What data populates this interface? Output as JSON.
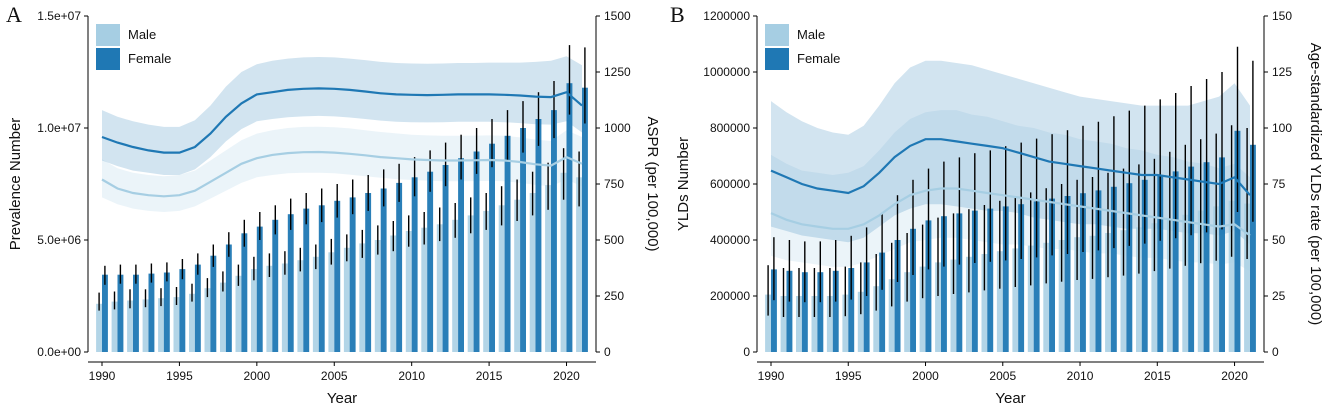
{
  "colors": {
    "male": "#a6cee3",
    "female": "#1f78b4",
    "errorbar": "#000000"
  },
  "chart_data": [
    {
      "type": "bar",
      "panel": "A",
      "xlabel": "Year",
      "ylabel": "Prevalence Number",
      "ylabel_right": "ASPR (per 100,000)",
      "years": [
        1990,
        1991,
        1992,
        1993,
        1994,
        1995,
        1996,
        1997,
        1998,
        1999,
        2000,
        2001,
        2002,
        2003,
        2004,
        2005,
        2006,
        2007,
        2008,
        2009,
        2010,
        2011,
        2012,
        2013,
        2014,
        2015,
        2016,
        2017,
        2018,
        2019,
        2020,
        2021
      ],
      "ylim_left": [
        0,
        15000000
      ],
      "yticks_left": [
        0,
        5000000,
        10000000,
        15000000
      ],
      "ytick_labels_left": [
        "0.0e+00",
        "5.0e+06",
        "1.0e+07",
        "1.5e+07"
      ],
      "ylim_right": [
        0,
        1500
      ],
      "yticks_right": [
        0,
        250,
        500,
        750,
        1000,
        1250,
        1500
      ],
      "ytick_labels_right": [
        "0",
        "250",
        "500",
        "750",
        "1000",
        "1250",
        "1500"
      ],
      "xticks": [
        1990,
        1995,
        2000,
        2005,
        2010,
        2015,
        2020
      ],
      "legend": [
        "Male",
        "Female"
      ],
      "series": [
        {
          "name": "Male",
          "values": [
            2150000,
            2250000,
            2300000,
            2350000,
            2400000,
            2450000,
            2600000,
            2850000,
            3100000,
            3400000,
            3700000,
            3850000,
            3950000,
            4100000,
            4250000,
            4450000,
            4650000,
            4850000,
            5000000,
            5200000,
            5400000,
            5550000,
            5700000,
            5900000,
            6100000,
            6300000,
            6550000,
            6800000,
            7100000,
            7450000,
            8000000,
            7800000
          ],
          "lower": [
            1850000,
            1900000,
            1950000,
            2000000,
            2050000,
            2100000,
            2250000,
            2450000,
            2700000,
            2950000,
            3200000,
            3350000,
            3450000,
            3600000,
            3700000,
            3900000,
            4050000,
            4200000,
            4350000,
            4500000,
            4700000,
            4800000,
            4950000,
            5100000,
            5300000,
            5450000,
            5650000,
            5850000,
            6100000,
            6350000,
            6800000,
            6500000
          ],
          "upper": [
            2650000,
            2700000,
            2800000,
            2800000,
            2850000,
            2900000,
            3050000,
            3300000,
            3600000,
            3900000,
            4250000,
            4400000,
            4500000,
            4650000,
            4800000,
            5050000,
            5250000,
            5450000,
            5650000,
            5850000,
            6100000,
            6250000,
            6450000,
            6650000,
            6900000,
            7100000,
            7400000,
            7700000,
            8050000,
            8450000,
            9100000,
            8950000
          ]
        },
        {
          "name": "Female",
          "values": [
            3450000,
            3450000,
            3450000,
            3500000,
            3550000,
            3700000,
            3900000,
            4300000,
            4800000,
            5300000,
            5600000,
            5900000,
            6150000,
            6400000,
            6550000,
            6750000,
            6900000,
            7100000,
            7300000,
            7550000,
            7800000,
            8050000,
            8350000,
            8650000,
            8950000,
            9300000,
            9650000,
            10000000,
            10400000,
            10800000,
            12000000,
            11800000
          ],
          "lower": [
            3000000,
            3050000,
            3050000,
            3100000,
            3150000,
            3250000,
            3450000,
            3800000,
            4250000,
            4700000,
            5000000,
            5250000,
            5450000,
            5700000,
            5800000,
            6000000,
            6150000,
            6300000,
            6500000,
            6700000,
            6950000,
            7150000,
            7400000,
            7700000,
            7950000,
            8250000,
            8550000,
            8900000,
            9200000,
            9550000,
            10600000,
            10200000
          ],
          "upper": [
            3850000,
            3900000,
            3900000,
            3950000,
            4000000,
            4150000,
            4400000,
            4800000,
            5350000,
            5900000,
            6250000,
            6550000,
            6850000,
            7100000,
            7300000,
            7500000,
            7700000,
            7900000,
            8150000,
            8400000,
            8700000,
            9000000,
            9350000,
            9700000,
            10000000,
            10400000,
            10800000,
            11200000,
            11600000,
            12100000,
            13700000,
            13600000
          ]
        }
      ],
      "rate_series": [
        {
          "name": "Male",
          "values": [
            770,
            730,
            710,
            700,
            695,
            700,
            720,
            760,
            800,
            840,
            865,
            880,
            888,
            892,
            893,
            890,
            885,
            878,
            870,
            865,
            860,
            857,
            855,
            855,
            856,
            857,
            855,
            848,
            838,
            832,
            870,
            840
          ],
          "lower": [
            690,
            660,
            640,
            630,
            625,
            630,
            650,
            685,
            720,
            755,
            780,
            790,
            798,
            800,
            800,
            798,
            792,
            785,
            778,
            772,
            768,
            765,
            762,
            762,
            763,
            764,
            762,
            756,
            746,
            740,
            770,
            740
          ],
          "upper": [
            860,
            820,
            800,
            790,
            785,
            790,
            810,
            855,
            900,
            945,
            975,
            990,
            1000,
            1005,
            1006,
            1003,
            998,
            990,
            982,
            976,
            970,
            967,
            965,
            965,
            966,
            967,
            965,
            958,
            948,
            942,
            990,
            960
          ]
        },
        {
          "name": "Female",
          "values": [
            960,
            935,
            915,
            900,
            890,
            890,
            915,
            975,
            1050,
            1110,
            1150,
            1160,
            1170,
            1175,
            1177,
            1175,
            1170,
            1163,
            1155,
            1150,
            1148,
            1147,
            1148,
            1150,
            1150,
            1150,
            1148,
            1145,
            1140,
            1138,
            1160,
            1100
          ],
          "lower": [
            855,
            830,
            810,
            800,
            790,
            790,
            815,
            870,
            940,
            995,
            1030,
            1040,
            1048,
            1052,
            1054,
            1052,
            1047,
            1040,
            1033,
            1028,
            1026,
            1025,
            1026,
            1028,
            1028,
            1028,
            1026,
            1022,
            1017,
            1015,
            1030,
            980
          ],
          "upper": [
            1080,
            1050,
            1030,
            1015,
            1005,
            1005,
            1035,
            1100,
            1185,
            1250,
            1285,
            1300,
            1310,
            1315,
            1317,
            1315,
            1310,
            1303,
            1295,
            1290,
            1288,
            1287,
            1288,
            1290,
            1290,
            1292,
            1292,
            1292,
            1295,
            1300,
            1320,
            1280
          ]
        }
      ]
    },
    {
      "type": "bar",
      "panel": "B",
      "xlabel": "Year",
      "ylabel": "YLDs Number",
      "ylabel_right": "Age-standardized YLDs rate (per 100,000)",
      "years": [
        1990,
        1991,
        1992,
        1993,
        1994,
        1995,
        1996,
        1997,
        1998,
        1999,
        2000,
        2001,
        2002,
        2003,
        2004,
        2005,
        2006,
        2007,
        2008,
        2009,
        2010,
        2011,
        2012,
        2013,
        2014,
        2015,
        2016,
        2017,
        2018,
        2019,
        2020,
        2021
      ],
      "ylim_left": [
        0,
        1200000
      ],
      "yticks_left": [
        0,
        200000,
        400000,
        600000,
        800000,
        1000000,
        1200000
      ],
      "ytick_labels_left": [
        "0",
        "200000",
        "400000",
        "600000",
        "800000",
        "1000000",
        "1200000"
      ],
      "ylim_right": [
        0,
        150
      ],
      "yticks_right": [
        0,
        25,
        50,
        75,
        100,
        125,
        150
      ],
      "ytick_labels_right": [
        "0",
        "25",
        "50",
        "75",
        "100",
        "125",
        "150"
      ],
      "xticks": [
        1990,
        1995,
        2000,
        2005,
        2010,
        2015,
        2020
      ],
      "legend": [
        "Male",
        "Female"
      ],
      "series": [
        {
          "name": "Male",
          "values": [
            205000,
            200000,
            200000,
            200000,
            200000,
            205000,
            215000,
            235000,
            260000,
            285000,
            305000,
            320000,
            330000,
            340000,
            350000,
            360000,
            370000,
            380000,
            390000,
            400000,
            410000,
            415000,
            425000,
            435000,
            445000,
            460000,
            475000,
            490000,
            505000,
            520000,
            540000,
            530000
          ],
          "lower": [
            130000,
            125000,
            125000,
            125000,
            125000,
            128000,
            135000,
            148000,
            163000,
            180000,
            192000,
            200000,
            207000,
            213000,
            220000,
            226000,
            232000,
            238000,
            245000,
            251000,
            257000,
            261000,
            267000,
            273000,
            280000,
            289000,
            298000,
            308000,
            317000,
            326000,
            340000,
            332000
          ],
          "upper": [
            310000,
            300000,
            300000,
            300000,
            300000,
            305000,
            320000,
            350000,
            390000,
            425000,
            455000,
            480000,
            495000,
            510000,
            525000,
            540000,
            555000,
            570000,
            585000,
            600000,
            615000,
            625000,
            640000,
            655000,
            670000,
            690000,
            715000,
            740000,
            760000,
            780000,
            810000,
            800000
          ]
        },
        {
          "name": "Female",
          "values": [
            295000,
            290000,
            285000,
            285000,
            290000,
            300000,
            320000,
            355000,
            400000,
            440000,
            470000,
            485000,
            495000,
            505000,
            512000,
            520000,
            528000,
            538000,
            548000,
            557000,
            567000,
            577000,
            590000,
            603000,
            615000,
            630000,
            645000,
            662000,
            678000,
            695000,
            790000,
            740000
          ],
          "lower": [
            185000,
            180000,
            178000,
            178000,
            180000,
            187000,
            200000,
            222000,
            250000,
            275000,
            295000,
            305000,
            312000,
            318000,
            322000,
            327000,
            332000,
            338000,
            345000,
            350000,
            357000,
            363000,
            371000,
            379000,
            387000,
            397000,
            406000,
            417000,
            427000,
            438000,
            500000,
            465000
          ],
          "upper": [
            410000,
            400000,
            395000,
            395000,
            400000,
            415000,
            445000,
            495000,
            560000,
            615000,
            655000,
            680000,
            695000,
            710000,
            720000,
            735000,
            748000,
            762000,
            778000,
            792000,
            808000,
            822000,
            842000,
            862000,
            880000,
            902000,
            925000,
            950000,
            975000,
            1000000,
            1090000,
            1040000
          ]
        }
      ],
      "rate_series": [
        {
          "name": "Male",
          "values": [
            62,
            59,
            57,
            56,
            55,
            55,
            57,
            61,
            66,
            70,
            72,
            73,
            73,
            72,
            71,
            70,
            69,
            68,
            67,
            66,
            65,
            64,
            63,
            62,
            61,
            60,
            59,
            58,
            57,
            56,
            57,
            52
          ],
          "lower": [
            43,
            41,
            40,
            39,
            38,
            38,
            40,
            43,
            46,
            49,
            50,
            51,
            51,
            50,
            49,
            48,
            48,
            47,
            46,
            46,
            45,
            44,
            44,
            43,
            42,
            42,
            41,
            40,
            40,
            39,
            40,
            36
          ],
          "upper": [
            88,
            84,
            81,
            80,
            79,
            80,
            83,
            90,
            98,
            104,
            107,
            108,
            108,
            106,
            105,
            103,
            101,
            100,
            98,
            97,
            95,
            94,
            93,
            91,
            90,
            88,
            87,
            85,
            84,
            82,
            84,
            78
          ]
        },
        {
          "name": "Female",
          "values": [
            81,
            78,
            75,
            73,
            72,
            71,
            74,
            80,
            87,
            92,
            95,
            95,
            94,
            93,
            92,
            91,
            89,
            87,
            85,
            84,
            83,
            82,
            81,
            80,
            79,
            79,
            78,
            77,
            76,
            75,
            78,
            70
          ],
          "lower": [
            56,
            54,
            52,
            51,
            50,
            49,
            51,
            56,
            61,
            64,
            66,
            66,
            65,
            64,
            63,
            63,
            62,
            60,
            59,
            58,
            57,
            57,
            56,
            55,
            55,
            55,
            54,
            53,
            53,
            52,
            54,
            48
          ],
          "upper": [
            112,
            107,
            103,
            100,
            98,
            97,
            101,
            110,
            120,
            127,
            130,
            130,
            129,
            128,
            126,
            124,
            122,
            120,
            118,
            116,
            114,
            113,
            112,
            111,
            110,
            110,
            110,
            110,
            112,
            114,
            120,
            110
          ]
        }
      ]
    }
  ]
}
